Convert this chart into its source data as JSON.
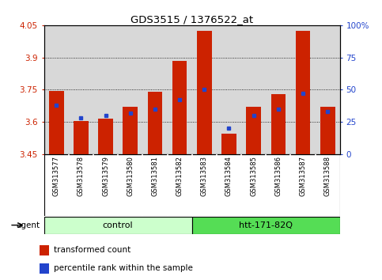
{
  "title": "GDS3515 / 1376522_at",
  "samples": [
    "GSM313577",
    "GSM313578",
    "GSM313579",
    "GSM313580",
    "GSM313581",
    "GSM313582",
    "GSM313583",
    "GSM313584",
    "GSM313585",
    "GSM313586",
    "GSM313587",
    "GSM313588"
  ],
  "red_values": [
    3.745,
    3.605,
    3.615,
    3.67,
    3.74,
    3.885,
    4.025,
    3.545,
    3.67,
    3.73,
    4.025,
    3.67
  ],
  "blue_values_pct": [
    38,
    28,
    30,
    32,
    35,
    42,
    50,
    20,
    30,
    35,
    47,
    33
  ],
  "ymin": 3.45,
  "ymax": 4.05,
  "yticks": [
    3.45,
    3.6,
    3.75,
    3.9,
    4.05
  ],
  "ytick_labels": [
    "3.45",
    "3.6",
    "3.75",
    "3.9",
    "4.05"
  ],
  "right_yticks": [
    0,
    25,
    50,
    75,
    100
  ],
  "right_ytick_labels": [
    "0",
    "25",
    "50",
    "75",
    "100%"
  ],
  "groups": [
    {
      "label": "control",
      "start": 0,
      "end": 6,
      "color": "#ccffcc"
    },
    {
      "label": "htt-171-82Q",
      "start": 6,
      "end": 12,
      "color": "#55dd55"
    }
  ],
  "agent_label": "agent",
  "bar_width": 0.6,
  "red_color": "#cc2200",
  "blue_color": "#2244cc",
  "grid_color": "black",
  "bg_color": "#d8d8d8",
  "axis_color_left": "#cc2200",
  "axis_color_right": "#2244cc",
  "legend_red": "transformed count",
  "legend_blue": "percentile rank within the sample"
}
